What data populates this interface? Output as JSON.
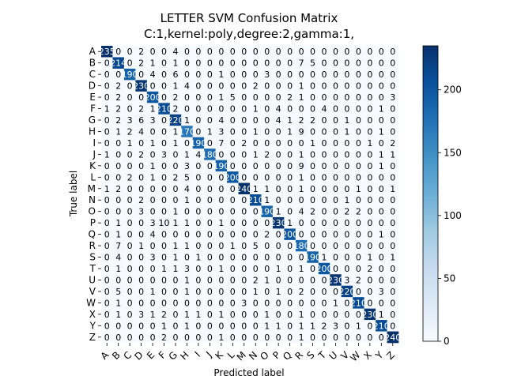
{
  "chart_data": {
    "type": "heatmap",
    "title_line1": "LETTER SVM Confusion Matrix",
    "title_line2": "C:1,kernel:poly,degree:2,gamma:1,",
    "xlabel": "Predicted label",
    "ylabel": "True label",
    "labels": [
      "A",
      "B",
      "C",
      "D",
      "E",
      "F",
      "G",
      "H",
      "I",
      "J",
      "K",
      "L",
      "M",
      "N",
      "O",
      "P",
      "Q",
      "R",
      "S",
      "T",
      "U",
      "V",
      "W",
      "X",
      "Y",
      "Z"
    ],
    "colormap": "Blues",
    "vmin": 0,
    "vmax": 235,
    "colorbar_ticks": [
      0,
      50,
      100,
      150,
      200
    ],
    "matrix": [
      [
        235,
        0,
        0,
        2,
        0,
        0,
        4,
        0,
        0,
        0,
        0,
        0,
        0,
        0,
        0,
        0,
        0,
        0,
        0,
        0,
        0,
        0,
        0,
        0,
        0,
        0
      ],
      [
        0,
        214,
        0,
        2,
        1,
        0,
        1,
        0,
        0,
        0,
        0,
        0,
        0,
        0,
        0,
        0,
        0,
        7,
        5,
        0,
        0,
        0,
        0,
        0,
        0,
        0
      ],
      [
        0,
        0,
        190,
        0,
        4,
        0,
        6,
        0,
        0,
        0,
        1,
        0,
        0,
        0,
        3,
        0,
        0,
        0,
        0,
        0,
        0,
        0,
        0,
        0,
        0,
        0
      ],
      [
        0,
        2,
        0,
        230,
        0,
        0,
        1,
        4,
        0,
        0,
        0,
        0,
        0,
        2,
        0,
        0,
        0,
        1,
        0,
        0,
        0,
        0,
        0,
        0,
        0,
        0
      ],
      [
        0,
        2,
        0,
        0,
        200,
        0,
        2,
        0,
        0,
        0,
        1,
        5,
        0,
        0,
        0,
        0,
        2,
        1,
        0,
        0,
        0,
        0,
        0,
        0,
        0,
        3
      ],
      [
        1,
        2,
        0,
        2,
        1,
        210,
        2,
        0,
        0,
        0,
        0,
        0,
        0,
        1,
        0,
        4,
        0,
        0,
        0,
        4,
        0,
        0,
        0,
        0,
        1,
        0
      ],
      [
        0,
        2,
        3,
        6,
        3,
        0,
        220,
        1,
        0,
        0,
        4,
        0,
        0,
        0,
        0,
        4,
        1,
        2,
        2,
        0,
        0,
        1,
        0,
        0,
        0,
        0
      ],
      [
        0,
        1,
        2,
        4,
        0,
        0,
        1,
        170,
        0,
        1,
        3,
        0,
        0,
        1,
        0,
        0,
        1,
        9,
        0,
        0,
        0,
        1,
        0,
        0,
        1,
        0
      ],
      [
        0,
        0,
        1,
        0,
        1,
        0,
        1,
        0,
        190,
        0,
        7,
        0,
        2,
        0,
        0,
        0,
        0,
        0,
        1,
        0,
        0,
        0,
        0,
        1,
        0,
        2
      ],
      [
        1,
        0,
        0,
        2,
        0,
        3,
        0,
        1,
        4,
        180,
        0,
        0,
        0,
        1,
        2,
        0,
        0,
        1,
        0,
        0,
        0,
        0,
        0,
        0,
        1,
        1
      ],
      [
        0,
        0,
        0,
        0,
        1,
        0,
        0,
        3,
        0,
        0,
        190,
        0,
        0,
        0,
        0,
        0,
        0,
        9,
        0,
        0,
        0,
        0,
        0,
        0,
        1,
        0
      ],
      [
        0,
        0,
        2,
        0,
        1,
        0,
        2,
        5,
        0,
        0,
        0,
        200,
        0,
        0,
        0,
        0,
        0,
        1,
        0,
        0,
        0,
        0,
        0,
        0,
        0,
        0
      ],
      [
        1,
        2,
        0,
        0,
        0,
        0,
        0,
        4,
        0,
        0,
        0,
        0,
        240,
        1,
        1,
        0,
        0,
        1,
        0,
        0,
        0,
        0,
        1,
        0,
        0,
        1
      ],
      [
        0,
        0,
        0,
        2,
        0,
        0,
        0,
        1,
        0,
        0,
        0,
        0,
        0,
        210,
        1,
        0,
        0,
        0,
        0,
        0,
        0,
        1,
        0,
        0,
        0,
        0
      ],
      [
        0,
        0,
        0,
        3,
        0,
        0,
        1,
        0,
        0,
        0,
        0,
        0,
        0,
        0,
        190,
        1,
        0,
        4,
        2,
        0,
        0,
        2,
        2,
        0,
        0,
        0
      ],
      [
        0,
        1,
        0,
        0,
        3,
        10,
        1,
        1,
        0,
        0,
        1,
        0,
        0,
        0,
        0,
        230,
        1,
        0,
        0,
        0,
        0,
        0,
        0,
        0,
        0,
        0
      ],
      [
        0,
        1,
        0,
        0,
        4,
        0,
        0,
        0,
        0,
        0,
        0,
        0,
        0,
        0,
        2,
        0,
        200,
        0,
        0,
        0,
        0,
        0,
        0,
        0,
        1,
        0
      ],
      [
        0,
        7,
        0,
        1,
        0,
        0,
        1,
        1,
        0,
        0,
        0,
        1,
        0,
        5,
        0,
        0,
        0,
        180,
        0,
        0,
        0,
        0,
        0,
        0,
        0,
        0
      ],
      [
        0,
        4,
        0,
        0,
        3,
        0,
        1,
        0,
        1,
        0,
        0,
        0,
        0,
        0,
        0,
        0,
        0,
        0,
        190,
        1,
        0,
        0,
        0,
        1,
        0,
        1
      ],
      [
        0,
        1,
        0,
        0,
        0,
        1,
        1,
        3,
        0,
        0,
        1,
        0,
        0,
        0,
        0,
        1,
        0,
        1,
        0,
        200,
        0,
        0,
        0,
        2,
        0,
        0
      ],
      [
        0,
        0,
        0,
        0,
        0,
        0,
        0,
        1,
        0,
        0,
        0,
        0,
        0,
        2,
        1,
        0,
        0,
        0,
        0,
        0,
        230,
        3,
        2,
        0,
        0,
        0
      ],
      [
        0,
        5,
        0,
        0,
        1,
        0,
        0,
        1,
        0,
        0,
        0,
        0,
        0,
        1,
        0,
        1,
        0,
        2,
        0,
        0,
        0,
        220,
        0,
        0,
        3,
        0
      ],
      [
        0,
        1,
        0,
        0,
        0,
        0,
        0,
        0,
        0,
        0,
        0,
        0,
        3,
        0,
        0,
        0,
        0,
        0,
        0,
        0,
        1,
        0,
        210,
        0,
        0,
        0
      ],
      [
        0,
        1,
        0,
        3,
        1,
        2,
        0,
        1,
        1,
        0,
        1,
        0,
        0,
        0,
        1,
        0,
        0,
        1,
        0,
        0,
        0,
        0,
        0,
        230,
        1,
        0
      ],
      [
        0,
        0,
        0,
        0,
        0,
        1,
        0,
        1,
        0,
        0,
        0,
        0,
        0,
        0,
        1,
        1,
        0,
        1,
        1,
        2,
        3,
        0,
        1,
        0,
        210,
        0
      ],
      [
        0,
        0,
        0,
        0,
        0,
        2,
        0,
        0,
        0,
        0,
        1,
        0,
        0,
        0,
        0,
        0,
        0,
        1,
        0,
        0,
        0,
        0,
        0,
        0,
        0,
        240
      ]
    ]
  }
}
